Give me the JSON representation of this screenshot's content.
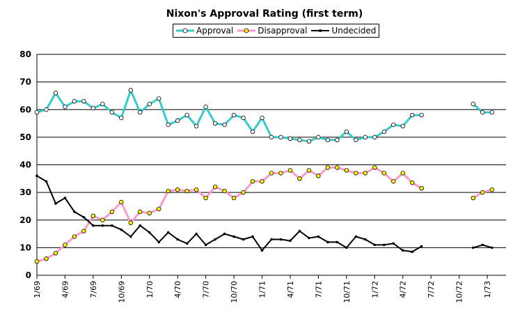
{
  "chart_data": {
    "type": "line",
    "title": "Nixon's Approval Rating (first term)",
    "ylim": [
      0,
      80
    ],
    "yticks": [
      0,
      10,
      20,
      30,
      40,
      50,
      60,
      70,
      80
    ],
    "x_range": [
      0,
      50
    ],
    "xticks": [
      {
        "x": 0,
        "label": "1/69"
      },
      {
        "x": 3,
        "label": "4/69"
      },
      {
        "x": 6,
        "label": "7/69"
      },
      {
        "x": 9,
        "label": "10/69"
      },
      {
        "x": 12,
        "label": "1/70"
      },
      {
        "x": 15,
        "label": "4/70"
      },
      {
        "x": 18,
        "label": "7/70"
      },
      {
        "x": 21,
        "label": "10/70"
      },
      {
        "x": 24,
        "label": "1/71"
      },
      {
        "x": 27,
        "label": "4/71"
      },
      {
        "x": 30,
        "label": "7/71"
      },
      {
        "x": 33,
        "label": "10/71"
      },
      {
        "x": 36,
        "label": "1/72"
      },
      {
        "x": 39,
        "label": "4/72"
      },
      {
        "x": 42,
        "label": "7/72"
      },
      {
        "x": 45,
        "label": "10/72"
      },
      {
        "x": 48,
        "label": "1/73"
      }
    ],
    "grid": true,
    "legend_position": "top-center",
    "series": [
      {
        "name": "Approval",
        "color": "#33cccc",
        "marker_fill": "#ffffff",
        "segments": [
          [
            [
              0,
              59
            ],
            [
              1,
              60
            ],
            [
              2,
              66
            ],
            [
              3,
              61
            ],
            [
              4,
              63
            ],
            [
              5,
              63
            ],
            [
              6,
              60.5
            ],
            [
              7,
              62
            ],
            [
              8,
              59
            ],
            [
              9,
              57
            ],
            [
              10,
              67
            ],
            [
              11,
              59
            ],
            [
              12,
              62
            ],
            [
              13,
              64
            ],
            [
              14,
              54.5
            ],
            [
              15,
              56
            ],
            [
              16,
              58
            ],
            [
              17,
              54
            ],
            [
              18,
              61
            ],
            [
              19,
              55
            ],
            [
              20,
              54.5
            ],
            [
              21,
              58
            ],
            [
              22,
              57
            ],
            [
              23,
              52
            ],
            [
              24,
              57
            ],
            [
              25,
              50
            ],
            [
              26,
              50
            ],
            [
              27,
              49.5
            ],
            [
              28,
              49
            ],
            [
              29,
              48.5
            ],
            [
              30,
              50
            ],
            [
              31,
              49
            ],
            [
              32,
              49
            ],
            [
              33,
              52
            ],
            [
              34,
              49
            ],
            [
              35,
              50
            ],
            [
              36,
              50
            ],
            [
              37,
              52
            ],
            [
              38,
              54.5
            ],
            [
              39,
              54
            ],
            [
              40,
              58
            ],
            [
              41,
              58
            ]
          ],
          [
            [
              46.5,
              62
            ],
            [
              47.5,
              59
            ],
            [
              48.5,
              59
            ]
          ]
        ]
      },
      {
        "name": "Disapproval",
        "color": "#ff99cc",
        "marker_fill": "#ffff00",
        "segments": [
          [
            [
              0,
              5
            ],
            [
              1,
              6
            ],
            [
              2,
              8
            ],
            [
              3,
              11
            ],
            [
              4,
              14
            ],
            [
              5,
              16
            ],
            [
              6,
              21.5
            ],
            [
              7,
              20
            ],
            [
              8,
              23
            ],
            [
              9,
              26.5
            ],
            [
              10,
              19
            ],
            [
              11,
              23
            ],
            [
              12,
              22.5
            ],
            [
              13,
              24
            ],
            [
              14,
              30.5
            ],
            [
              15,
              31
            ],
            [
              16,
              30.5
            ],
            [
              17,
              31
            ],
            [
              18,
              28
            ],
            [
              19,
              32
            ],
            [
              20,
              30.5
            ],
            [
              21,
              28
            ],
            [
              22,
              30
            ],
            [
              23,
              34
            ],
            [
              24,
              34
            ],
            [
              25,
              37
            ],
            [
              26,
              37
            ],
            [
              27,
              38
            ],
            [
              28,
              35
            ],
            [
              29,
              38
            ],
            [
              30,
              36
            ],
            [
              31,
              39
            ],
            [
              32,
              39
            ],
            [
              33,
              38
            ],
            [
              34,
              37
            ],
            [
              35,
              37
            ],
            [
              36,
              39
            ],
            [
              37,
              37
            ],
            [
              38,
              34
            ],
            [
              39,
              37
            ],
            [
              40,
              33.5
            ],
            [
              41,
              31.5
            ]
          ],
          [
            [
              46.5,
              28
            ],
            [
              47.5,
              30
            ],
            [
              48.5,
              31
            ]
          ]
        ]
      },
      {
        "name": "Undecided",
        "color": "#000000",
        "marker_fill": "#000000",
        "segments": [
          [
            [
              0,
              36
            ],
            [
              1,
              34
            ],
            [
              2,
              26
            ],
            [
              3,
              28
            ],
            [
              4,
              23
            ],
            [
              5,
              21
            ],
            [
              6,
              18
            ],
            [
              7,
              18
            ],
            [
              8,
              18
            ],
            [
              9,
              16.5
            ],
            [
              10,
              14
            ],
            [
              11,
              18
            ],
            [
              12,
              15.5
            ],
            [
              13,
              12
            ],
            [
              14,
              15.5
            ],
            [
              15,
              13
            ],
            [
              16,
              11.5
            ],
            [
              17,
              15
            ],
            [
              18,
              11
            ],
            [
              19,
              13
            ],
            [
              20,
              15
            ],
            [
              21,
              14
            ],
            [
              22,
              13
            ],
            [
              23,
              14
            ],
            [
              24,
              9
            ],
            [
              25,
              13
            ],
            [
              26,
              13
            ],
            [
              27,
              12.5
            ],
            [
              28,
              16
            ],
            [
              29,
              13.5
            ],
            [
              30,
              14
            ],
            [
              31,
              12
            ],
            [
              32,
              12
            ],
            [
              33,
              10
            ],
            [
              34,
              14
            ],
            [
              35,
              13
            ],
            [
              36,
              11
            ],
            [
              37,
              11
            ],
            [
              38,
              11.5
            ],
            [
              39,
              9
            ],
            [
              40,
              8.5
            ],
            [
              41,
              10.5
            ]
          ],
          [
            [
              46.5,
              10
            ],
            [
              47.5,
              11
            ],
            [
              48.5,
              10
            ]
          ]
        ]
      }
    ]
  }
}
